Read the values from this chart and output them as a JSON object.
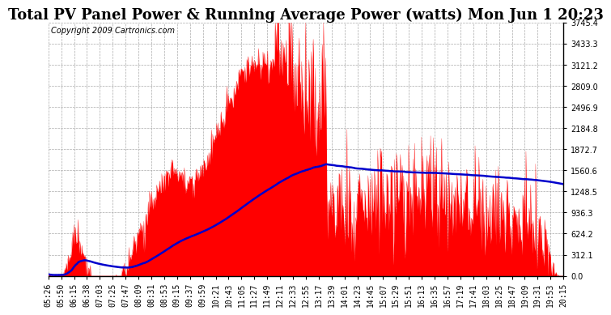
{
  "title": "Total PV Panel Power & Running Average Power (watts) Mon Jun 1 20:23",
  "copyright": "Copyright 2009 Cartronics.com",
  "bg_color": "#ffffff",
  "plot_bg_color": "#ffffff",
  "grid_color": "#aaaaaa",
  "y_min": 0.0,
  "y_max": 3745.4,
  "y_ticks": [
    0.0,
    312.1,
    624.2,
    936.3,
    1248.5,
    1560.6,
    1872.7,
    2184.8,
    2496.9,
    2809.0,
    3121.2,
    3433.3,
    3745.4
  ],
  "x_labels": [
    "05:26",
    "05:50",
    "06:15",
    "06:38",
    "07:03",
    "07:25",
    "07:47",
    "08:09",
    "08:31",
    "08:53",
    "09:15",
    "09:37",
    "09:59",
    "10:21",
    "10:43",
    "11:05",
    "11:27",
    "11:49",
    "12:11",
    "12:33",
    "12:55",
    "13:17",
    "13:39",
    "14:01",
    "14:23",
    "14:45",
    "15:07",
    "15:29",
    "15:51",
    "16:13",
    "16:35",
    "16:57",
    "17:19",
    "17:41",
    "18:03",
    "18:25",
    "18:47",
    "19:09",
    "19:31",
    "19:53",
    "20:15"
  ],
  "title_fontsize": 13,
  "copyright_fontsize": 7,
  "tick_fontsize": 7,
  "red_color": "#ff0000",
  "blue_color": "#0000cc",
  "line_color": "#000000"
}
